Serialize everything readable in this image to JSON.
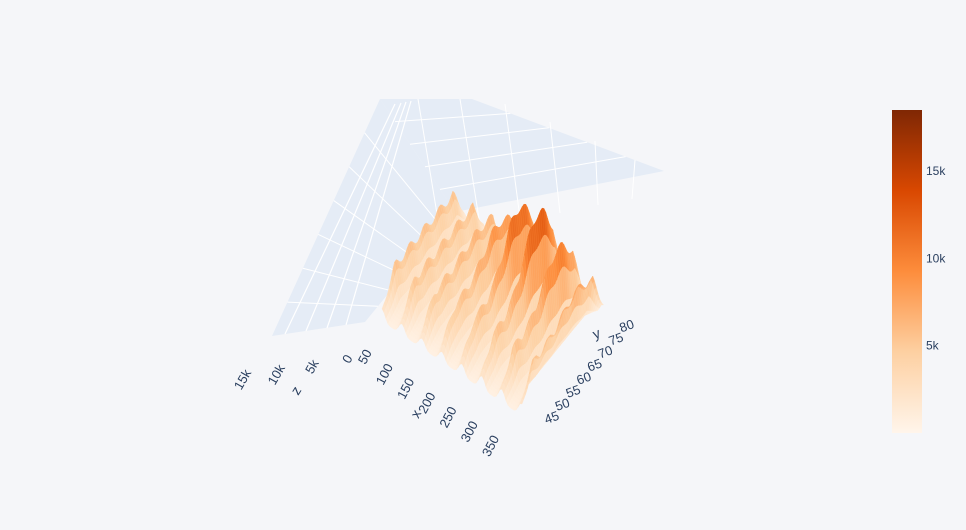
{
  "chart_data": {
    "type": "surface",
    "title": "",
    "axes": {
      "x": {
        "label": "x",
        "range": [
          0,
          370
        ],
        "ticks": [
          50,
          100,
          150,
          200,
          250,
          300,
          350
        ]
      },
      "y": {
        "label": "y",
        "range": [
          42,
          84
        ],
        "ticks": [
          45,
          50,
          55,
          60,
          65,
          70,
          75,
          80
        ]
      },
      "z": {
        "label": "z",
        "range": [
          0,
          17000
        ],
        "ticks": [
          0,
          5000,
          10000,
          15000
        ],
        "tick_labels": [
          "0",
          "5k",
          "10k",
          "15k"
        ]
      }
    },
    "grid": true,
    "colorscale": {
      "name": "Oranges",
      "stops": [
        "#fff5eb",
        "#fdd0a2",
        "#fd8d3c",
        "#d94801",
        "#7f2704"
      ],
      "range": [
        0,
        18500
      ],
      "ticks": [
        5000,
        10000,
        15000
      ],
      "tick_labels": [
        "5k",
        "10k",
        "15k"
      ]
    },
    "surface_description": {
      "x_range": [
        30,
        360
      ],
      "y_range": [
        44,
        82
      ],
      "ridge_count": 7,
      "ridge_spacing_x": 47,
      "peak_z": 18500,
      "peak_near": {
        "x": 255,
        "y": 70
      }
    }
  }
}
